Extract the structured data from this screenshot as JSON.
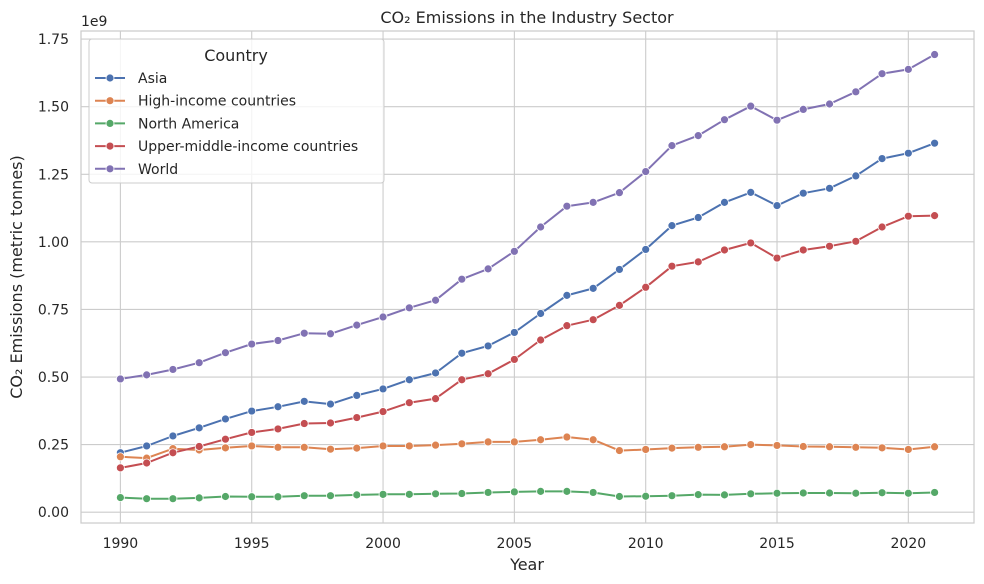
{
  "chart_data": {
    "type": "line",
    "title": "CO₂ Emissions in the Industry Sector",
    "xlabel": "Year",
    "ylabel": "CO₂ Emissions (metric tonnes)",
    "y_offset_label": "1e9",
    "y_multiplier": 1000000000,
    "xlim": [
      1988.5,
      2022.5
    ],
    "ylim": [
      -0.04,
      1.78
    ],
    "x_ticks": [
      1990,
      1995,
      2000,
      2005,
      2010,
      2015,
      2020
    ],
    "y_ticks": [
      0.0,
      0.25,
      0.5,
      0.75,
      1.0,
      1.25,
      1.5,
      1.75
    ],
    "y_tick_labels": [
      "0.00",
      "0.25",
      "0.50",
      "0.75",
      "1.00",
      "1.25",
      "1.50",
      "1.75"
    ],
    "grid": true,
    "legend": {
      "title": "Country",
      "placement": "top-left"
    },
    "x": [
      1990,
      1991,
      1992,
      1993,
      1994,
      1995,
      1996,
      1997,
      1998,
      1999,
      2000,
      2001,
      2002,
      2003,
      2004,
      2005,
      2006,
      2007,
      2008,
      2009,
      2010,
      2011,
      2012,
      2013,
      2014,
      2015,
      2016,
      2017,
      2018,
      2019,
      2020,
      2021
    ],
    "series": [
      {
        "name": "Asia",
        "color": "#4c72b0",
        "values": [
          0.22,
          0.245,
          0.282,
          0.312,
          0.345,
          0.374,
          0.39,
          0.41,
          0.4,
          0.432,
          0.456,
          0.49,
          0.515,
          0.588,
          0.615,
          0.665,
          0.735,
          0.802,
          0.828,
          0.898,
          0.972,
          1.06,
          1.09,
          1.146,
          1.183,
          1.134,
          1.18,
          1.198,
          1.244,
          1.308,
          1.328,
          1.365
        ]
      },
      {
        "name": "High-income countries",
        "color": "#dd8452",
        "values": [
          0.205,
          0.2,
          0.235,
          0.23,
          0.238,
          0.245,
          0.24,
          0.24,
          0.233,
          0.237,
          0.245,
          0.245,
          0.248,
          0.253,
          0.26,
          0.26,
          0.268,
          0.278,
          0.268,
          0.228,
          0.232,
          0.237,
          0.24,
          0.242,
          0.25,
          0.247,
          0.243,
          0.242,
          0.24,
          0.238,
          0.232,
          0.242
        ]
      },
      {
        "name": "North America",
        "color": "#55a868",
        "values": [
          0.054,
          0.05,
          0.05,
          0.053,
          0.058,
          0.057,
          0.057,
          0.061,
          0.061,
          0.064,
          0.066,
          0.066,
          0.068,
          0.069,
          0.073,
          0.075,
          0.077,
          0.077,
          0.073,
          0.058,
          0.059,
          0.061,
          0.065,
          0.064,
          0.068,
          0.07,
          0.071,
          0.071,
          0.07,
          0.072,
          0.07,
          0.073
        ]
      },
      {
        "name": "Upper-middle-income countries",
        "color": "#c44e52",
        "values": [
          0.164,
          0.182,
          0.22,
          0.243,
          0.27,
          0.295,
          0.308,
          0.328,
          0.33,
          0.35,
          0.372,
          0.405,
          0.42,
          0.49,
          0.512,
          0.565,
          0.637,
          0.69,
          0.712,
          0.765,
          0.832,
          0.91,
          0.926,
          0.97,
          0.996,
          0.94,
          0.97,
          0.984,
          1.002,
          1.055,
          1.095,
          1.097
        ]
      },
      {
        "name": "World",
        "color": "#8172b3",
        "values": [
          0.493,
          0.508,
          0.528,
          0.553,
          0.59,
          0.622,
          0.635,
          0.662,
          0.66,
          0.692,
          0.722,
          0.756,
          0.784,
          0.862,
          0.9,
          0.965,
          1.055,
          1.132,
          1.146,
          1.182,
          1.26,
          1.356,
          1.393,
          1.452,
          1.502,
          1.45,
          1.49,
          1.51,
          1.555,
          1.622,
          1.638,
          1.693
        ]
      }
    ]
  }
}
